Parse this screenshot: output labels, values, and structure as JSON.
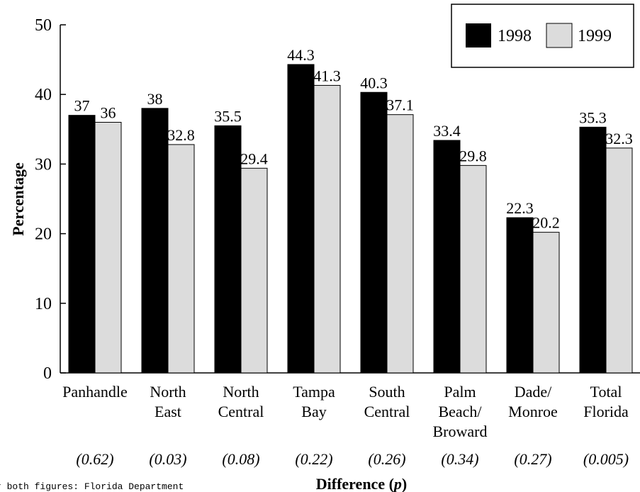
{
  "chart_data": {
    "type": "bar",
    "categories": [
      [
        "Panhandle"
      ],
      [
        "North",
        "East"
      ],
      [
        "North",
        "Central"
      ],
      [
        "Tampa",
        "Bay"
      ],
      [
        "South",
        "Central"
      ],
      [
        "Palm",
        "Beach/",
        "Broward"
      ],
      [
        "Dade/",
        "Monroe"
      ],
      [
        "Total",
        "Florida"
      ]
    ],
    "series": [
      {
        "name": "1998",
        "values": [
          37,
          38,
          35.5,
          44.3,
          40.3,
          33.4,
          22.3,
          35.3
        ],
        "labels": [
          "37",
          "38",
          "35.5",
          "44.3",
          "40.3",
          "33.4",
          "22.3",
          "35.3"
        ],
        "color": "#000000"
      },
      {
        "name": "1999",
        "values": [
          36,
          32.8,
          29.4,
          41.3,
          37.1,
          29.8,
          20.2,
          32.3
        ],
        "labels": [
          "36",
          "32.8",
          "29.4",
          "41.3",
          "37.1",
          "29.8",
          "20.2",
          "32.3"
        ],
        "color": "#dcdcdc"
      }
    ],
    "p_values": [
      "(0.62)",
      "(0.03)",
      "(0.08)",
      "(0.22)",
      "(0.26)",
      "(0.34)",
      "(0.27)",
      "(0.005)"
    ],
    "ylabel": "Percentage",
    "xlabel_main": "Difference (",
    "xlabel_italic": "p",
    "xlabel_close": ")",
    "yticks": [
      "0",
      "10",
      "20",
      "30",
      "40",
      "50"
    ],
    "ylim": [
      0,
      50
    ],
    "grid": false,
    "legend_position": "top-right"
  },
  "footnote": "r both figures: Florida Department"
}
